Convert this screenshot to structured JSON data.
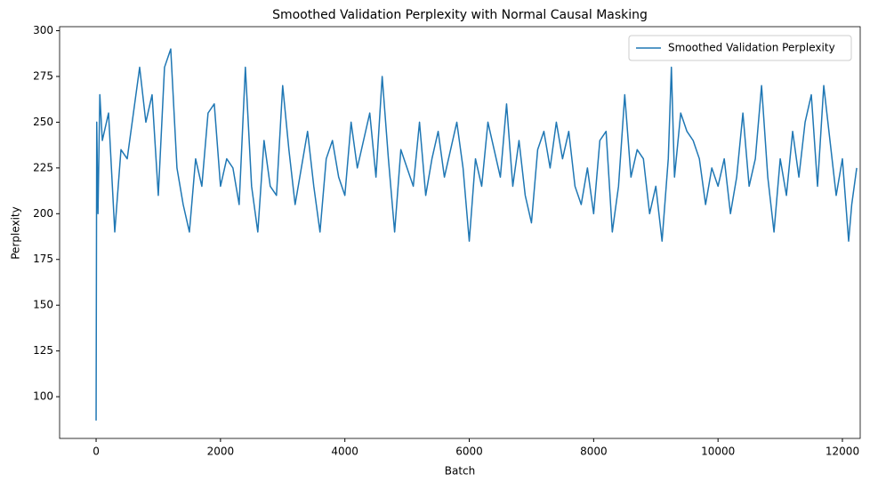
{
  "chart_data": {
    "type": "line",
    "title": "Smoothed Validation Perplexity with Normal Causal Masking",
    "x_label": "Batch",
    "y_label": "Perplexity",
    "x": [
      0,
      10,
      30,
      60,
      100,
      200,
      300,
      400,
      500,
      600,
      700,
      800,
      900,
      1000,
      1100,
      1200,
      1300,
      1400,
      1500,
      1600,
      1700,
      1800,
      1900,
      2000,
      2100,
      2200,
      2300,
      2400,
      2500,
      2600,
      2700,
      2800,
      2900,
      3000,
      3100,
      3200,
      3300,
      3400,
      3500,
      3600,
      3700,
      3800,
      3900,
      4000,
      4100,
      4200,
      4300,
      4400,
      4500,
      4600,
      4700,
      4800,
      4900,
      5000,
      5100,
      5200,
      5300,
      5400,
      5500,
      5600,
      5700,
      5800,
      5900,
      6000,
      6100,
      6200,
      6300,
      6400,
      6500,
      6600,
      6700,
      6800,
      6900,
      7000,
      7100,
      7200,
      7300,
      7400,
      7500,
      7600,
      7700,
      7800,
      7900,
      8000,
      8100,
      8200,
      8300,
      8400,
      8500,
      8600,
      8700,
      8800,
      8900,
      9000,
      9100,
      9200,
      9250,
      9300,
      9400,
      9500,
      9600,
      9700,
      9800,
      9900,
      10000,
      10100,
      10200,
      10300,
      10400,
      10500,
      10600,
      10700,
      10800,
      10900,
      11000,
      11100,
      11200,
      11300,
      11400,
      11500,
      11600,
      11700,
      11800,
      11900,
      12000,
      12100,
      12150,
      12230
    ],
    "series": [
      {
        "name": "Smoothed Validation Perplexity",
        "color": "#1f77b4",
        "values": [
          87,
          250,
          200,
          265,
          240,
          255,
          190,
          235,
          230,
          255,
          280,
          250,
          265,
          210,
          280,
          290,
          225,
          205,
          190,
          230,
          215,
          255,
          260,
          215,
          230,
          225,
          205,
          280,
          215,
          190,
          240,
          215,
          210,
          270,
          235,
          205,
          225,
          245,
          215,
          190,
          230,
          240,
          220,
          210,
          250,
          225,
          240,
          255,
          220,
          275,
          230,
          190,
          235,
          225,
          215,
          250,
          210,
          230,
          245,
          220,
          235,
          250,
          225,
          185,
          230,
          215,
          250,
          235,
          220,
          260,
          215,
          240,
          210,
          195,
          235,
          245,
          225,
          250,
          230,
          245,
          215,
          205,
          225,
          200,
          240,
          245,
          190,
          215,
          265,
          220,
          235,
          230,
          200,
          215,
          185,
          230,
          280,
          220,
          255,
          245,
          240,
          230,
          205,
          225,
          215,
          230,
          200,
          220,
          255,
          215,
          230,
          270,
          220,
          190,
          230,
          210,
          245,
          220,
          250,
          265,
          215,
          270,
          240,
          210,
          230,
          185,
          205,
          225
        ]
      }
    ],
    "xlim": [
      -587,
      12286
    ],
    "ylim": [
      77.2,
      302.2
    ],
    "xticks": [
      0,
      2000,
      4000,
      6000,
      8000,
      10000,
      12000
    ],
    "yticks": [
      100,
      125,
      150,
      175,
      200,
      225,
      250,
      275,
      300
    ],
    "grid": false,
    "legend": "upper right"
  }
}
